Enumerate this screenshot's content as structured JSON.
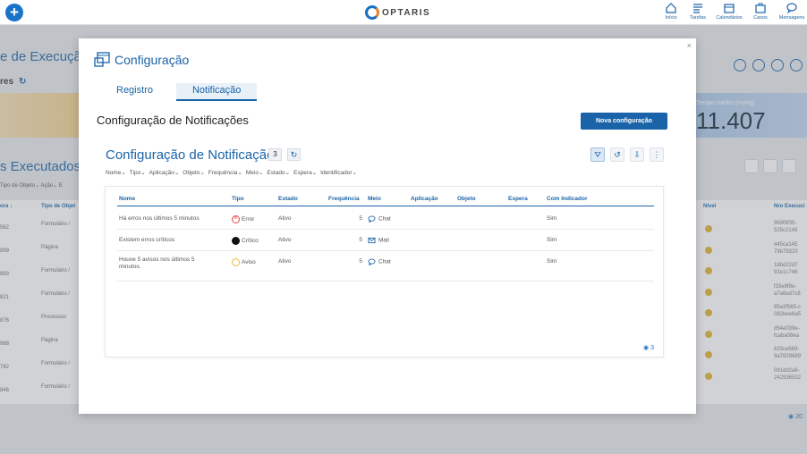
{
  "topbar": {
    "brand": "OPTARIS",
    "nav": [
      {
        "label": "Início",
        "icon": "home-icon"
      },
      {
        "label": "Tarefas",
        "icon": "tasks-icon"
      },
      {
        "label": "Calendários",
        "icon": "calendar-icon"
      },
      {
        "label": "Casos",
        "icon": "briefcase-icon"
      },
      {
        "label": "Mensagens",
        "icon": "chat-icon"
      }
    ]
  },
  "background": {
    "title": "e de Execução",
    "subtitle": "res",
    "executed_title": "s Executados",
    "filters": "Tipo de Objeto⌄  Ação⌄  E",
    "headers": [
      "ora ↓",
      "Tipo de Objet"
    ],
    "rows": [
      {
        "a": "562",
        "b": "Formulário /"
      },
      {
        "a": "899",
        "b": "Página"
      },
      {
        "a": "883",
        "b": "Formulário /"
      },
      {
        "a": "821",
        "b": "Formulário /"
      },
      {
        "a": "876",
        "b": "Processos"
      },
      {
        "a": "968",
        "b": "Página"
      },
      {
        "a": "782",
        "b": "Formulário /"
      },
      {
        "a": "846",
        "b": "Formulário /"
      }
    ],
    "avg_label": "Tempo médio (mseg)",
    "avg_value": "11.407",
    "right_headers": [
      "Nível",
      "Nro Execuci"
    ],
    "nro": [
      [
        "969f9f35-",
        "525c2148"
      ],
      [
        "445ca145",
        "79b79320"
      ],
      [
        "18bd22d7",
        "92e1c746"
      ],
      [
        "f33e9f9e-",
        "a7a6ed7c8"
      ],
      [
        "85a3f565-c",
        "082bee6a5"
      ],
      [
        "d54e039e-",
        "fcaba08ea"
      ],
      [
        "633ce689-",
        "9a7829689"
      ],
      [
        "081dd2a6-",
        "242936532"
      ]
    ],
    "right_count": "20"
  },
  "modal": {
    "close": "×",
    "title": "Configuração",
    "tabs": [
      {
        "label": "Registro",
        "active": false
      },
      {
        "label": "Notificação",
        "active": true
      }
    ],
    "section_title": "Configuração de Notificações",
    "new_button": "Nova configuração",
    "list_title": "Configuração de Notificação",
    "count": "3",
    "filters": [
      "Nome⌄",
      "Tipo⌄",
      "Aplicação⌄",
      "Objeto⌄",
      "Frequência⌄",
      "Meio⌄",
      "Estado⌄",
      "Espera⌄",
      "Identificador⌄"
    ],
    "columns": [
      "Nome",
      "Tipo",
      "Estado",
      "Frequência",
      "Meio",
      "Aplicação",
      "Objeto",
      "Espera",
      "Com Indicador"
    ],
    "rows": [
      {
        "nome": "Há erros nos últimos 5 minutos",
        "tipo": "Error",
        "tipo_icon": "error-icon",
        "estado": "Ativo",
        "frequencia": "5",
        "meio": "Chat",
        "meio_icon": "chat-icon",
        "aplicacao": "",
        "objeto": "",
        "espera": "",
        "indicador": "Sim"
      },
      {
        "nome": "Existem erros críticos",
        "tipo": "Crítico",
        "tipo_icon": "bomb-icon",
        "estado": "Ativo",
        "frequencia": "5",
        "meio": "Mail",
        "meio_icon": "mail-icon",
        "aplicacao": "",
        "objeto": "",
        "espera": "",
        "indicador": "Sim"
      },
      {
        "nome": "Houve 5 avisos nos últimos 5 minutos.",
        "tipo": "Aviso",
        "tipo_icon": "warning-icon",
        "estado": "Ativo",
        "frequencia": "5",
        "meio": "Chat",
        "meio_icon": "chat-icon",
        "aplicacao": "",
        "objeto": "",
        "espera": "",
        "indicador": "Sim"
      }
    ],
    "footer_count": "3"
  },
  "colors": {
    "accent": "#1a63a8",
    "primary_button": "#1a63a8",
    "error": "#e04848",
    "warning": "#e7b93a"
  }
}
